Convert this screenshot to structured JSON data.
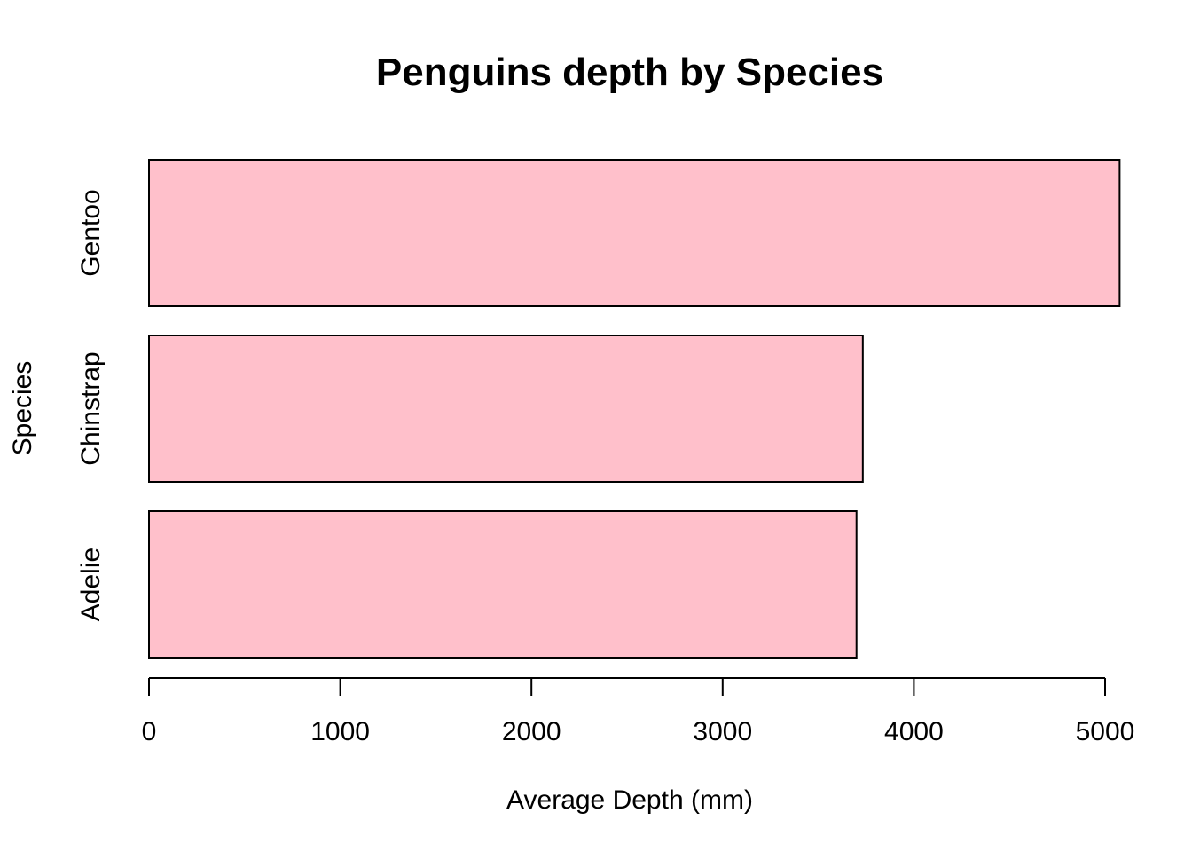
{
  "chart_data": {
    "type": "bar",
    "orientation": "horizontal",
    "title": "Penguins depth by Species",
    "xlabel": "Average Depth (mm)",
    "ylabel": "Species",
    "categories": [
      "Adelie",
      "Chinstrap",
      "Gentoo"
    ],
    "values": [
      3700,
      3733,
      5076
    ],
    "xlim": [
      0,
      5000
    ],
    "xticks": [
      0,
      1000,
      2000,
      3000,
      4000,
      5000
    ],
    "bar_color": "#FFC0CB",
    "grid": false,
    "legend": "none"
  }
}
